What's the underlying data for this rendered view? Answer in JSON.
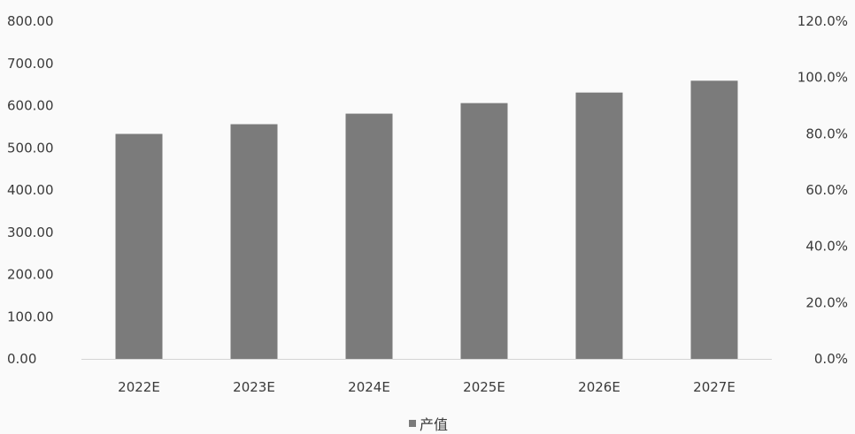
{
  "chart_data": {
    "type": "bar",
    "categories": [
      "2022E",
      "2023E",
      "2024E",
      "2025E",
      "2026E",
      "2027E"
    ],
    "series": [
      {
        "name": "产值",
        "values": [
          533,
          556,
          581,
          606,
          631,
          659
        ],
        "color": "#7b7b7b"
      }
    ],
    "ylim": [
      0,
      800
    ],
    "yticks": [
      "0.00",
      "100.00",
      "200.00",
      "300.00",
      "400.00",
      "500.00",
      "600.00",
      "700.00",
      "800.00"
    ],
    "y2lim": [
      0,
      120
    ],
    "y2ticks": [
      "0.0%",
      "20.0%",
      "40.0%",
      "60.0%",
      "80.0%",
      "100.0%",
      "120.0%"
    ],
    "grid": false,
    "legend_position": "bottom"
  }
}
